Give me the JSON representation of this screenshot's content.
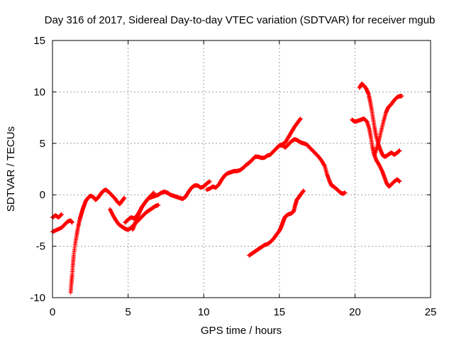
{
  "chart_data": {
    "type": "scatter",
    "title": "Day 316 of 2017, Sidereal Day-to-day VTEC variation (SDTVAR) for receiver mgub",
    "xlabel": "GPS time / hours",
    "ylabel": "SDTVAR / TECUs",
    "xlim": [
      0,
      25
    ],
    "ylim": [
      -10,
      15
    ],
    "xticks": [
      0,
      5,
      10,
      15,
      20,
      25
    ],
    "yticks": [
      -10,
      -5,
      0,
      5,
      10,
      15
    ],
    "xtick_labels": [
      "0",
      "5",
      "10",
      "15",
      "20",
      "25"
    ],
    "ytick_labels": [
      "-10",
      "-5",
      "0",
      "5",
      "10",
      "15"
    ],
    "grid": true,
    "marker": "+",
    "color": "#ff0000",
    "series": [
      {
        "points": [
          [
            0.0,
            -2.2
          ],
          [
            0.2,
            -2.0
          ],
          [
            0.4,
            -2.2
          ],
          [
            0.6,
            -1.9
          ]
        ]
      },
      {
        "points": [
          [
            0.0,
            -3.6
          ],
          [
            0.3,
            -3.4
          ],
          [
            0.6,
            -3.2
          ],
          [
            0.8,
            -2.9
          ],
          [
            1.0,
            -2.6
          ],
          [
            1.2,
            -2.5
          ],
          [
            1.3,
            -2.7
          ]
        ]
      },
      {
        "points": [
          [
            1.2,
            -9.5
          ],
          [
            1.25,
            -8.6
          ],
          [
            1.3,
            -7.8
          ],
          [
            1.35,
            -6.8
          ],
          [
            1.4,
            -5.9
          ],
          [
            1.5,
            -4.8
          ],
          [
            1.6,
            -3.9
          ],
          [
            1.7,
            -3.1
          ],
          [
            1.8,
            -2.4
          ],
          [
            1.9,
            -1.9
          ],
          [
            2.0,
            -1.4
          ],
          [
            2.1,
            -1.0
          ],
          [
            2.2,
            -0.6
          ],
          [
            2.35,
            -0.3
          ],
          [
            2.5,
            -0.1
          ],
          [
            2.7,
            -0.2
          ],
          [
            2.85,
            -0.5
          ],
          [
            3.0,
            -0.3
          ],
          [
            3.15,
            0.0
          ],
          [
            3.3,
            0.3
          ],
          [
            3.5,
            0.5
          ],
          [
            3.7,
            0.3
          ],
          [
            3.9,
            0.0
          ],
          [
            4.1,
            -0.3
          ],
          [
            4.3,
            -0.7
          ],
          [
            4.45,
            -0.9
          ],
          [
            4.6,
            -0.6
          ],
          [
            4.75,
            -0.3
          ]
        ]
      },
      {
        "points": [
          [
            3.8,
            -1.4
          ],
          [
            4.0,
            -2.0
          ],
          [
            4.2,
            -2.5
          ],
          [
            4.4,
            -2.9
          ],
          [
            4.6,
            -3.1
          ],
          [
            4.8,
            -3.3
          ],
          [
            5.0,
            -3.4
          ],
          [
            5.2,
            -3.2
          ],
          [
            5.4,
            -2.9
          ],
          [
            5.6,
            -2.6
          ],
          [
            5.8,
            -2.3
          ],
          [
            6.0,
            -2.0
          ],
          [
            6.2,
            -1.7
          ],
          [
            6.4,
            -1.5
          ],
          [
            6.6,
            -1.3
          ],
          [
            6.8,
            -1.1
          ],
          [
            7.0,
            -1.0
          ]
        ]
      },
      {
        "points": [
          [
            4.8,
            -2.7
          ],
          [
            5.0,
            -2.4
          ],
          [
            5.2,
            -2.2
          ],
          [
            5.4,
            -2.3
          ],
          [
            5.6,
            -2.0
          ],
          [
            5.8,
            -1.5
          ],
          [
            6.0,
            -1.0
          ],
          [
            6.2,
            -0.6
          ],
          [
            6.4,
            -0.3
          ],
          [
            6.6,
            -0.2
          ],
          [
            6.8,
            -0.1
          ],
          [
            7.0,
            0.0
          ],
          [
            7.2,
            0.2
          ],
          [
            7.4,
            0.3
          ],
          [
            7.6,
            0.2
          ],
          [
            7.8,
            0.0
          ],
          [
            8.0,
            -0.1
          ],
          [
            8.2,
            -0.2
          ],
          [
            8.4,
            -0.3
          ],
          [
            8.6,
            -0.4
          ],
          [
            8.8,
            -0.2
          ],
          [
            9.0,
            0.3
          ],
          [
            9.2,
            0.7
          ],
          [
            9.4,
            0.9
          ],
          [
            9.6,
            0.9
          ],
          [
            9.8,
            0.7
          ],
          [
            10.0,
            0.8
          ],
          [
            10.2,
            1.1
          ],
          [
            10.4,
            1.3
          ]
        ]
      },
      {
        "points": [
          [
            5.3,
            -3.4
          ],
          [
            5.45,
            -2.8
          ],
          [
            5.6,
            -2.2
          ],
          [
            5.75,
            -1.7
          ],
          [
            5.9,
            -1.2
          ],
          [
            6.1,
            -0.8
          ],
          [
            6.3,
            -0.4
          ],
          [
            6.5,
            -0.1
          ],
          [
            6.7,
            0.2
          ]
        ]
      },
      {
        "points": [
          [
            10.2,
            0.5
          ],
          [
            10.4,
            0.6
          ],
          [
            10.6,
            0.8
          ],
          [
            10.8,
            0.7
          ],
          [
            11.0,
            1.0
          ],
          [
            11.2,
            1.5
          ],
          [
            11.4,
            1.9
          ],
          [
            11.6,
            2.1
          ],
          [
            11.8,
            2.2
          ],
          [
            12.0,
            2.3
          ],
          [
            12.2,
            2.3
          ],
          [
            12.4,
            2.4
          ],
          [
            12.6,
            2.6
          ],
          [
            12.8,
            2.9
          ],
          [
            13.0,
            3.1
          ],
          [
            13.2,
            3.4
          ],
          [
            13.4,
            3.7
          ],
          [
            13.6,
            3.7
          ],
          [
            13.8,
            3.6
          ],
          [
            14.0,
            3.6
          ],
          [
            14.2,
            3.8
          ],
          [
            14.4,
            3.9
          ],
          [
            14.6,
            4.2
          ],
          [
            14.8,
            4.5
          ],
          [
            15.0,
            4.8
          ],
          [
            15.2,
            4.8
          ],
          [
            15.4,
            4.6
          ],
          [
            15.6,
            4.9
          ],
          [
            15.8,
            5.2
          ],
          [
            16.0,
            5.4
          ],
          [
            16.2,
            5.3
          ],
          [
            16.4,
            5.1
          ],
          [
            16.6,
            5.0
          ],
          [
            16.8,
            4.9
          ],
          [
            17.0,
            4.6
          ],
          [
            17.2,
            4.3
          ],
          [
            17.4,
            4.0
          ],
          [
            17.6,
            3.7
          ],
          [
            17.8,
            3.3
          ],
          [
            18.0,
            2.8
          ],
          [
            18.15,
            2.0
          ],
          [
            18.3,
            1.4
          ],
          [
            18.45,
            0.9
          ],
          [
            18.6,
            0.8
          ],
          [
            18.75,
            0.6
          ],
          [
            18.9,
            0.4
          ],
          [
            19.05,
            0.2
          ],
          [
            19.2,
            0.1
          ],
          [
            19.35,
            0.2
          ]
        ]
      },
      {
        "points": [
          [
            15.0,
            4.8
          ],
          [
            15.2,
            4.9
          ],
          [
            15.4,
            5.1
          ],
          [
            15.6,
            5.6
          ],
          [
            15.8,
            6.1
          ],
          [
            16.0,
            6.6
          ],
          [
            16.2,
            7.0
          ],
          [
            16.4,
            7.4
          ]
        ]
      },
      {
        "points": [
          [
            13.0,
            -5.9
          ],
          [
            13.2,
            -5.7
          ],
          [
            13.4,
            -5.5
          ],
          [
            13.6,
            -5.3
          ],
          [
            13.8,
            -5.1
          ],
          [
            14.0,
            -4.9
          ],
          [
            14.2,
            -4.8
          ],
          [
            14.4,
            -4.6
          ],
          [
            14.6,
            -4.3
          ],
          [
            14.8,
            -3.9
          ],
          [
            15.0,
            -3.5
          ],
          [
            15.1,
            -3.2
          ],
          [
            15.2,
            -2.8
          ],
          [
            15.3,
            -2.4
          ],
          [
            15.4,
            -2.1
          ],
          [
            15.6,
            -1.9
          ],
          [
            15.8,
            -1.8
          ],
          [
            15.95,
            -1.6
          ],
          [
            16.05,
            -1.0
          ],
          [
            16.15,
            -0.5
          ],
          [
            16.3,
            -0.2
          ],
          [
            16.45,
            0.1
          ],
          [
            16.6,
            0.4
          ]
        ]
      },
      {
        "points": [
          [
            19.8,
            7.3
          ],
          [
            20.0,
            7.1
          ],
          [
            20.2,
            7.2
          ],
          [
            20.4,
            7.3
          ],
          [
            20.6,
            7.4
          ],
          [
            20.8,
            7.1
          ],
          [
            20.95,
            6.4
          ],
          [
            21.05,
            5.6
          ],
          [
            21.15,
            4.7
          ],
          [
            21.25,
            4.0
          ],
          [
            21.4,
            3.4
          ],
          [
            21.6,
            2.9
          ],
          [
            21.8,
            2.3
          ],
          [
            21.95,
            1.7
          ],
          [
            22.1,
            1.1
          ],
          [
            22.25,
            0.8
          ],
          [
            22.4,
            1.0
          ],
          [
            22.6,
            1.3
          ],
          [
            22.8,
            1.5
          ],
          [
            22.95,
            1.3
          ]
        ]
      },
      {
        "points": [
          [
            20.3,
            10.4
          ],
          [
            20.45,
            10.8
          ],
          [
            20.6,
            10.6
          ],
          [
            20.75,
            10.3
          ],
          [
            20.9,
            9.8
          ],
          [
            21.0,
            9.1
          ],
          [
            21.1,
            8.3
          ],
          [
            21.2,
            7.4
          ],
          [
            21.3,
            6.5
          ],
          [
            21.4,
            5.7
          ],
          [
            21.55,
            4.9
          ],
          [
            21.7,
            4.3
          ],
          [
            21.85,
            3.8
          ],
          [
            22.0,
            3.7
          ],
          [
            22.2,
            3.9
          ],
          [
            22.4,
            4.1
          ],
          [
            22.6,
            3.9
          ],
          [
            22.8,
            4.1
          ],
          [
            22.95,
            4.3
          ]
        ]
      },
      {
        "points": [
          [
            21.3,
            3.9
          ],
          [
            21.45,
            4.6
          ],
          [
            21.6,
            5.4
          ],
          [
            21.75,
            6.3
          ],
          [
            21.9,
            7.2
          ],
          [
            22.05,
            8.0
          ],
          [
            22.2,
            8.5
          ],
          [
            22.4,
            8.8
          ],
          [
            22.6,
            9.2
          ],
          [
            22.8,
            9.5
          ],
          [
            23.0,
            9.6
          ],
          [
            23.1,
            9.6
          ]
        ]
      }
    ]
  }
}
